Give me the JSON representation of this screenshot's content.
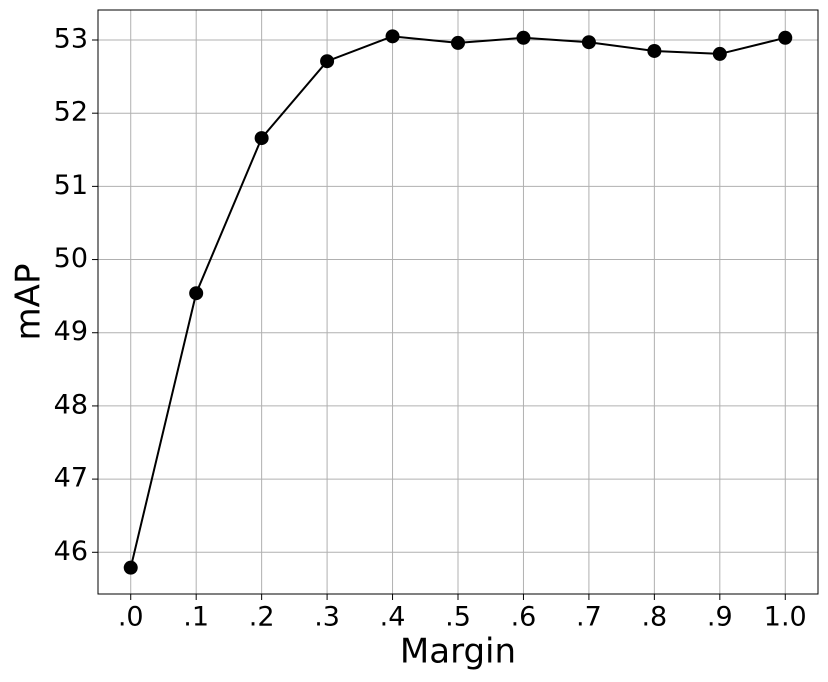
{
  "chart_data": {
    "type": "line",
    "xlabel": "Margin",
    "ylabel": "mAP",
    "x": [
      0,
      0.1,
      0.2,
      0.3,
      0.4,
      0.5,
      0.6,
      0.7,
      0.8,
      0.9,
      1.0
    ],
    "values": [
      45.79,
      49.54,
      51.66,
      52.71,
      53.05,
      52.96,
      53.03,
      52.97,
      52.85,
      52.81,
      53.03
    ],
    "color": "#000000",
    "xlim": [
      -0.05,
      1.05
    ],
    "xticks": [
      {
        "value": 0,
        "label": ".0"
      },
      {
        "value": 0.1,
        "label": ".1"
      },
      {
        "value": 0.2,
        "label": ".2"
      },
      {
        "value": 0.3,
        "label": ".3"
      },
      {
        "value": 0.4,
        "label": ".4"
      },
      {
        "value": 0.5,
        "label": ".5"
      },
      {
        "value": 0.6,
        "label": ".6"
      },
      {
        "value": 0.7,
        "label": ".7"
      },
      {
        "value": 0.8,
        "label": ".8"
      },
      {
        "value": 0.9,
        "label": ".9"
      },
      {
        "value": 1,
        "label": "1.0"
      }
    ],
    "ylim": [
      45.43,
      53.41
    ],
    "yticks": [
      46,
      47,
      48,
      49,
      50,
      51,
      52,
      53
    ],
    "grid": true
  }
}
